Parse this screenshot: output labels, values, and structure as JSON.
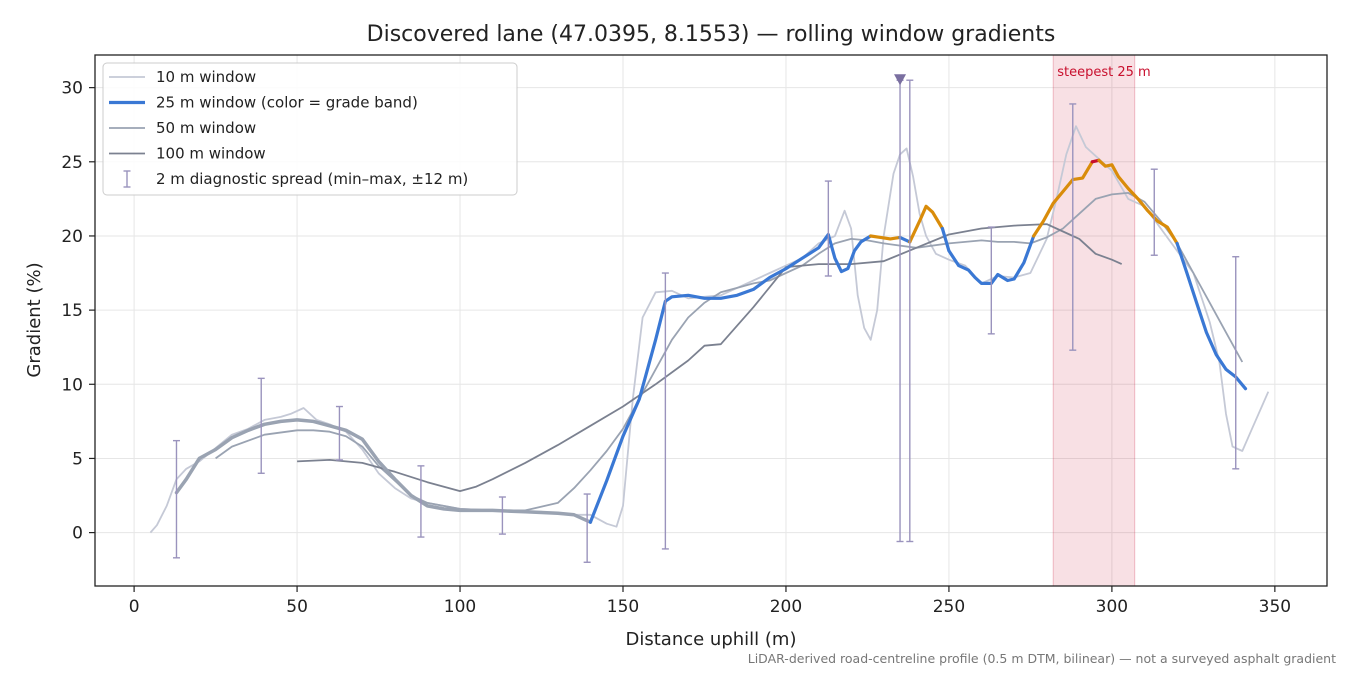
{
  "chart_data": {
    "type": "line",
    "title": "Discovered lane (47.0395, 8.1553) — rolling window gradients",
    "xlabel": "Distance uphill (m)",
    "ylabel": "Gradient (%)",
    "xlim": [
      -12,
      366
    ],
    "ylim": [
      -3.6,
      32.2
    ],
    "xticks": [
      0,
      50,
      100,
      150,
      200,
      250,
      300,
      350
    ],
    "yticks": [
      0,
      5,
      10,
      15,
      20,
      25,
      30
    ],
    "grid": true,
    "legend_position": "top-left",
    "footnote": "LiDAR-derived road-centreline profile (0.5 m DTM, bilinear) — not a surveyed asphalt gradient",
    "highlight": {
      "label": "steepest 25 m",
      "x_start": 282,
      "x_end": 307,
      "color": "#c8102e"
    },
    "colors": {
      "w10": "#c5c9d6",
      "w25_blue": "#3a78d4",
      "w25_orange": "#d98c0a",
      "w25_red": "#c8102e",
      "w25_grey": "#9aa3b2",
      "w50": "#9aa3b2",
      "w100": "#7b8190",
      "errorbar": "#9a93bd"
    },
    "series": [
      {
        "name": "10 m window",
        "key": "w10",
        "x": [
          5,
          7,
          10,
          13,
          16,
          20,
          25,
          30,
          35,
          40,
          45,
          48,
          52,
          56,
          60,
          65,
          70,
          75,
          80,
          85,
          90,
          95,
          100,
          110,
          120,
          125,
          130,
          135,
          140,
          145,
          148,
          150,
          153,
          156,
          160,
          165,
          170,
          175,
          180,
          185,
          190,
          195,
          200,
          205,
          210,
          215,
          218,
          220,
          222,
          224,
          226,
          228,
          230,
          233,
          235,
          237,
          239,
          241,
          243,
          246,
          250,
          255,
          260,
          265,
          270,
          275,
          280,
          283,
          286,
          289,
          292,
          295,
          300,
          305,
          310,
          315,
          320,
          325,
          330,
          333,
          335,
          337,
          340,
          343,
          346,
          348
        ],
        "y": [
          0,
          0.5,
          1.8,
          3.6,
          4.3,
          4.8,
          5.7,
          6.6,
          7.0,
          7.6,
          7.8,
          8.0,
          8.4,
          7.6,
          7.3,
          6.8,
          5.6,
          4.0,
          3.0,
          2.3,
          2.0,
          1.8,
          1.6,
          1.5,
          1.4,
          1.4,
          1.3,
          1.2,
          1.2,
          0.6,
          0.4,
          1.8,
          9.0,
          14.5,
          16.2,
          16.3,
          15.8,
          15.9,
          16.0,
          16.5,
          17.0,
          17.5,
          18.0,
          18.5,
          19.5,
          20.0,
          21.7,
          20.5,
          16.0,
          13.8,
          13.0,
          15.0,
          20.0,
          24.2,
          25.5,
          25.9,
          24.0,
          21.5,
          20.0,
          18.8,
          18.4,
          18.0,
          16.8,
          17.3,
          17.2,
          17.5,
          19.8,
          22.5,
          25.5,
          27.4,
          26.0,
          25.4,
          24.4,
          22.5,
          22.0,
          20.5,
          19.0,
          17.5,
          14.2,
          11.5,
          8.0,
          5.8,
          5.5,
          7.0,
          8.5,
          9.5
        ]
      },
      {
        "name": "25 m window (color = grade band)",
        "key": "w25",
        "x": [
          13,
          16,
          20,
          25,
          30,
          35,
          40,
          45,
          50,
          55,
          60,
          65,
          70,
          75,
          80,
          85,
          90,
          95,
          100,
          110,
          120,
          130,
          135,
          140,
          145,
          150,
          155,
          160,
          163,
          165,
          170,
          175,
          180,
          185,
          190,
          195,
          200,
          205,
          210,
          213,
          215,
          217,
          219,
          221,
          223,
          226,
          229,
          232,
          235,
          238,
          241,
          243,
          245,
          248,
          250,
          253,
          256,
          258,
          260,
          263,
          265,
          268,
          270,
          273,
          276,
          279,
          282,
          285,
          288,
          291,
          294,
          296,
          298,
          300,
          302,
          305,
          308,
          311,
          314,
          317,
          320,
          323,
          326,
          329,
          332,
          335,
          338,
          341
        ],
        "y": [
          2.7,
          3.6,
          5.0,
          5.6,
          6.4,
          6.9,
          7.3,
          7.5,
          7.6,
          7.5,
          7.2,
          6.9,
          6.3,
          4.8,
          3.6,
          2.5,
          1.8,
          1.6,
          1.5,
          1.5,
          1.4,
          1.3,
          1.2,
          0.7,
          3.5,
          6.5,
          9.0,
          13.0,
          15.6,
          15.9,
          16.0,
          15.8,
          15.8,
          16.0,
          16.4,
          17.2,
          17.8,
          18.5,
          19.2,
          20.1,
          18.5,
          17.6,
          17.8,
          19.0,
          19.6,
          20.0,
          19.9,
          19.8,
          19.9,
          19.6,
          21.0,
          22.0,
          21.6,
          20.5,
          19.0,
          18.0,
          17.7,
          17.2,
          16.8,
          16.8,
          17.4,
          17.0,
          17.1,
          18.2,
          20.0,
          21.0,
          22.2,
          23.0,
          23.8,
          23.9,
          25.0,
          25.1,
          24.7,
          24.8,
          24.0,
          23.2,
          22.5,
          21.7,
          21.0,
          20.6,
          19.5,
          17.5,
          15.5,
          13.5,
          12.0,
          11.0,
          10.5,
          9.7
        ],
        "segments": [
          {
            "band": "grey",
            "x_from": 13,
            "x_to": 140
          },
          {
            "band": "blue",
            "x_from": 140,
            "x_to": 226
          },
          {
            "band": "orange",
            "x_from": 226,
            "x_to": 235
          },
          {
            "band": "blue",
            "x_from": 235,
            "x_to": 238
          },
          {
            "band": "orange",
            "x_from": 238,
            "x_to": 248
          },
          {
            "band": "blue",
            "x_from": 248,
            "x_to": 276
          },
          {
            "band": "orange",
            "x_from": 276,
            "x_to": 294
          },
          {
            "band": "red",
            "x_from": 294,
            "x_to": 296
          },
          {
            "band": "orange",
            "x_from": 296,
            "x_to": 320
          },
          {
            "band": "blue",
            "x_from": 320,
            "x_to": 341
          }
        ]
      },
      {
        "name": "50 m window",
        "key": "w50",
        "x": [
          25,
          30,
          40,
          50,
          55,
          60,
          65,
          70,
          75,
          80,
          85,
          90,
          100,
          110,
          120,
          130,
          135,
          140,
          145,
          150,
          155,
          160,
          165,
          170,
          175,
          180,
          185,
          190,
          195,
          200,
          205,
          210,
          215,
          220,
          225,
          230,
          240,
          250,
          255,
          260,
          265,
          270,
          275,
          280,
          285,
          290,
          295,
          300,
          305,
          310,
          315,
          320,
          325,
          330,
          335,
          340
        ],
        "y": [
          5.0,
          5.8,
          6.6,
          6.9,
          6.9,
          6.8,
          6.5,
          5.8,
          4.5,
          3.5,
          2.5,
          2.0,
          1.6,
          1.5,
          1.5,
          2.0,
          3.0,
          4.2,
          5.5,
          7.0,
          9.0,
          11.0,
          13.0,
          14.5,
          15.5,
          16.2,
          16.5,
          16.8,
          17.0,
          17.5,
          18.0,
          18.8,
          19.5,
          19.8,
          19.7,
          19.5,
          19.2,
          19.5,
          19.6,
          19.7,
          19.6,
          19.6,
          19.5,
          19.9,
          20.5,
          21.5,
          22.5,
          22.8,
          22.9,
          22.3,
          21.0,
          19.5,
          17.5,
          15.5,
          13.5,
          11.5
        ]
      },
      {
        "name": "100 m window",
        "key": "w100",
        "x": [
          50,
          60,
          70,
          80,
          90,
          100,
          105,
          110,
          120,
          130,
          140,
          150,
          160,
          170,
          175,
          180,
          190,
          200,
          210,
          220,
          230,
          240,
          250,
          260,
          270,
          280,
          285,
          290,
          295,
          300,
          303
        ],
        "y": [
          4.8,
          4.9,
          4.7,
          4.1,
          3.4,
          2.8,
          3.1,
          3.6,
          4.7,
          5.9,
          7.2,
          8.5,
          10.0,
          11.6,
          12.6,
          12.7,
          15.2,
          17.9,
          18.1,
          18.1,
          18.3,
          19.2,
          20.1,
          20.5,
          20.7,
          20.8,
          20.3,
          19.8,
          18.8,
          18.4,
          18.1
        ]
      }
    ],
    "errorbars": {
      "name": "2 m diagnostic spread (min–max, ±12 m)",
      "x": [
        13,
        39,
        63,
        88,
        113,
        139,
        163,
        213,
        235,
        238,
        263,
        288,
        313,
        338
      ],
      "min": [
        -1.7,
        4.0,
        4.9,
        -0.3,
        -0.1,
        -2.0,
        -1.1,
        17.3,
        -0.6,
        -0.6,
        13.4,
        12.3,
        18.7,
        4.3
      ],
      "max": [
        6.2,
        10.4,
        8.5,
        4.5,
        2.4,
        2.6,
        17.5,
        23.7,
        30.5,
        30.5,
        20.6,
        28.9,
        24.5,
        18.6
      ]
    },
    "clipped_marker": {
      "x": 235,
      "y": 30.5
    }
  }
}
